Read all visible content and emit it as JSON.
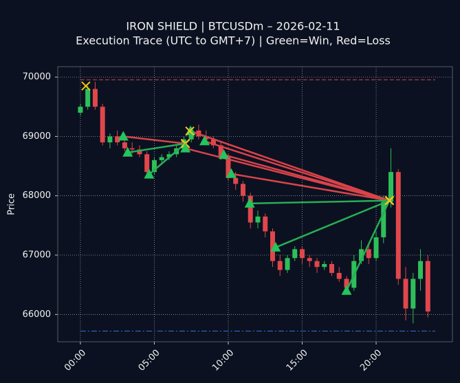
{
  "chart_data": {
    "type": "candlestick",
    "title": "IRON SHIELD | BTCUSDm – 2026-02-11",
    "subtitle": "Execution Trace (UTC to GMT+7) | Green=Win, Red=Loss",
    "y_label": "Price",
    "up_color": "#2fbf5a",
    "down_color": "#e0474c",
    "x": [
      0,
      0.5,
      1,
      1.5,
      2,
      2.5,
      3,
      3.5,
      4,
      4.5,
      5,
      5.5,
      6,
      6.5,
      7,
      7.5,
      8,
      8.5,
      9,
      9.5,
      10,
      10.5,
      11,
      11.5,
      12,
      12.5,
      13,
      13.5,
      14,
      14.5,
      15,
      15.5,
      16,
      16.5,
      17,
      17.5,
      18,
      18.5,
      19,
      19.5,
      20,
      20.5,
      21,
      21.5,
      22,
      22.5,
      23,
      23.5
    ],
    "candles": [
      [
        69400,
        69550,
        69350,
        69500
      ],
      [
        69500,
        69850,
        69450,
        69800
      ],
      [
        69800,
        69920,
        69450,
        69500
      ],
      [
        69500,
        69550,
        68850,
        68900
      ],
      [
        68900,
        69050,
        68800,
        69000
      ],
      [
        69000,
        69100,
        68850,
        68900
      ],
      [
        68900,
        69050,
        68750,
        68800
      ],
      [
        68800,
        68900,
        68700,
        68780
      ],
      [
        68780,
        68850,
        68650,
        68700
      ],
      [
        68700,
        68750,
        68300,
        68400
      ],
      [
        68400,
        68650,
        68350,
        68600
      ],
      [
        68600,
        68700,
        68550,
        68650
      ],
      [
        68650,
        68750,
        68600,
        68700
      ],
      [
        68700,
        68850,
        68650,
        68800
      ],
      [
        68800,
        69000,
        68750,
        68950
      ],
      [
        68950,
        69150,
        68900,
        69100
      ],
      [
        69100,
        69200,
        68950,
        69000
      ],
      [
        69000,
        69100,
        68900,
        68950
      ],
      [
        68950,
        69000,
        68800,
        68850
      ],
      [
        68850,
        68900,
        68600,
        68650
      ],
      [
        68650,
        68700,
        68250,
        68300
      ],
      [
        68300,
        68400,
        68100,
        68200
      ],
      [
        68200,
        68250,
        67900,
        68000
      ],
      [
        68000,
        68050,
        67450,
        67550
      ],
      [
        67550,
        67750,
        67450,
        67650
      ],
      [
        67650,
        67700,
        67300,
        67400
      ],
      [
        67400,
        67450,
        66800,
        66900
      ],
      [
        66900,
        67000,
        66650,
        66750
      ],
      [
        66750,
        67000,
        66700,
        66950
      ],
      [
        66950,
        67150,
        66900,
        67100
      ],
      [
        67100,
        67150,
        66850,
        66950
      ],
      [
        66950,
        67000,
        66800,
        66900
      ],
      [
        66900,
        66950,
        66700,
        66800
      ],
      [
        66800,
        66900,
        66750,
        66850
      ],
      [
        66850,
        66900,
        66650,
        66700
      ],
      [
        66700,
        66800,
        66550,
        66600
      ],
      [
        66600,
        66650,
        66350,
        66450
      ],
      [
        66450,
        67000,
        66400,
        66900
      ],
      [
        66900,
        67250,
        66850,
        67100
      ],
      [
        67100,
        67200,
        66850,
        66950
      ],
      [
        66950,
        67400,
        66900,
        67300
      ],
      [
        67300,
        68000,
        67200,
        67900
      ],
      [
        67900,
        68800,
        67800,
        68400
      ],
      [
        68400,
        68450,
        66500,
        66600
      ],
      [
        66600,
        66800,
        65900,
        66100
      ],
      [
        66100,
        66700,
        65850,
        66600
      ],
      [
        66600,
        67100,
        66400,
        66900
      ],
      [
        66900,
        67000,
        65950,
        66050
      ]
    ],
    "trades": [
      {
        "entry_x": 2.9,
        "entry_y": 69000,
        "exit_x": 7.1,
        "exit_y": 68880,
        "color": "#d9434a"
      },
      {
        "entry_x": 3.2,
        "entry_y": 68730,
        "exit_x": 7.1,
        "exit_y": 68880,
        "color": "#27ae56"
      },
      {
        "entry_x": 4.65,
        "entry_y": 68360,
        "exit_x": 7.1,
        "exit_y": 68880,
        "color": "#27ae56"
      },
      {
        "entry_x": 7.1,
        "entry_y": 68800,
        "exit_x": 20.9,
        "exit_y": 67920,
        "color": "#d9434a"
      },
      {
        "entry_x": 7.45,
        "entry_y": 69090,
        "exit_x": 20.9,
        "exit_y": 67920,
        "color": "#d9434a"
      },
      {
        "entry_x": 8.4,
        "entry_y": 68920,
        "exit_x": 20.9,
        "exit_y": 67920,
        "color": "#d9434a"
      },
      {
        "entry_x": 9.7,
        "entry_y": 68690,
        "exit_x": 20.9,
        "exit_y": 67920,
        "color": "#d9434a"
      },
      {
        "entry_x": 10.2,
        "entry_y": 68370,
        "exit_x": 20.9,
        "exit_y": 67920,
        "color": "#d9434a"
      },
      {
        "entry_x": 11.45,
        "entry_y": 67870,
        "exit_x": 20.9,
        "exit_y": 67920,
        "color": "#27ae56"
      },
      {
        "entry_x": 13.2,
        "entry_y": 67130,
        "exit_x": 20.9,
        "exit_y": 67920,
        "color": "#27ae56"
      },
      {
        "entry_x": 18.0,
        "entry_y": 66400,
        "exit_x": 20.9,
        "exit_y": 67920,
        "color": "#27ae56"
      }
    ],
    "unpaired_exits": [
      {
        "x": 0.37,
        "y": 69850
      },
      {
        "x": 7.4,
        "y": 69090
      }
    ],
    "entry_color": "#22c55e",
    "exit_color": "#f5c518",
    "levels": [
      {
        "value": 69955,
        "color": "#d9434a",
        "style": "6,3"
      },
      {
        "value": 65720,
        "color": "#3b6fd6",
        "style": "8,3,2,3"
      }
    ],
    "level_span": [
      0,
      24
    ],
    "xlim": [
      -1.53,
      25.16
    ],
    "ylim": [
      65540,
      70175
    ],
    "xticks": [
      {
        "value": 0,
        "label": "00:00"
      },
      {
        "value": 5,
        "label": "05:00"
      },
      {
        "value": 10,
        "label": "10:00"
      },
      {
        "value": 15,
        "label": "15:00"
      },
      {
        "value": 20,
        "label": "20:00"
      }
    ],
    "yticks": [
      66000,
      67000,
      68000,
      69000,
      70000
    ],
    "grid": true
  }
}
